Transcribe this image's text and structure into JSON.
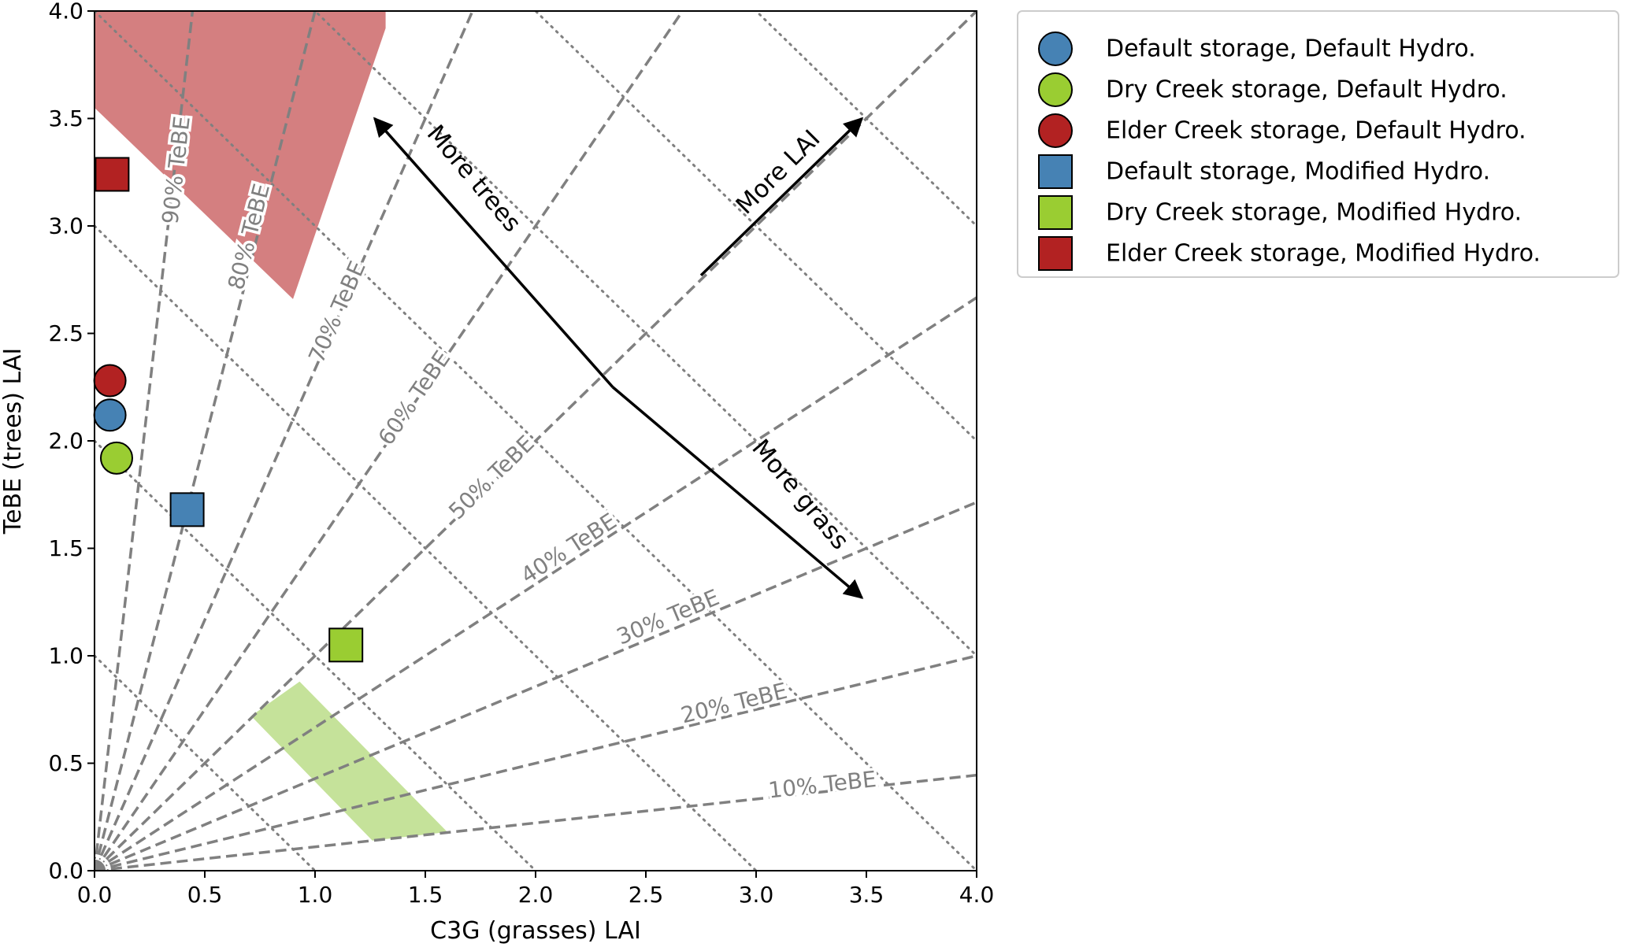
{
  "chart_data": {
    "type": "scatter",
    "xlabel": "C3G (grasses) LAI",
    "ylabel": "TeBE (trees) LAI",
    "xlim": [
      0,
      4
    ],
    "ylim": [
      0,
      4
    ],
    "x_ticks": [
      "0.0",
      "0.5",
      "1.0",
      "1.5",
      "2.0",
      "2.5",
      "3.0",
      "3.5",
      "4.0"
    ],
    "y_ticks": [
      "0.0",
      "0.5",
      "1.0",
      "1.5",
      "2.0",
      "2.5",
      "3.0",
      "3.5",
      "4.0"
    ],
    "grid": false,
    "legend_position": "outside-right",
    "series": [
      {
        "name": "Default storage, Default Hydro.",
        "marker": "circle",
        "color": "#4682b4",
        "x": 0.07,
        "y": 2.12
      },
      {
        "name": "Dry Creek storage, Default Hydro.",
        "marker": "circle",
        "color": "#9acd32",
        "x": 0.1,
        "y": 1.92
      },
      {
        "name": "Elder Creek storage, Default Hydro.",
        "marker": "circle",
        "color": "#b22222",
        "x": 0.07,
        "y": 2.28
      },
      {
        "name": "Default storage, Modified Hydro.",
        "marker": "square",
        "color": "#4682b4",
        "x": 0.42,
        "y": 1.68
      },
      {
        "name": "Dry Creek storage, Modified Hydro.",
        "marker": "square",
        "color": "#9acd32",
        "x": 1.14,
        "y": 1.05
      },
      {
        "name": "Elder Creek storage, Modified Hydro.",
        "marker": "square",
        "color": "#b22222",
        "x": 0.08,
        "y": 3.24
      }
    ],
    "tebe_fraction_lines": [
      {
        "fraction": 0.1,
        "label": "10% TeBE",
        "label_pos": [
          3.3,
          0.4
        ]
      },
      {
        "fraction": 0.2,
        "label": "20% TeBE",
        "label_pos": [
          2.9,
          0.78
        ]
      },
      {
        "fraction": 0.3,
        "label": "30% TeBE",
        "label_pos": [
          2.6,
          1.18
        ]
      },
      {
        "fraction": 0.4,
        "label": "40% TeBE",
        "label_pos": [
          2.15,
          1.5
        ]
      },
      {
        "fraction": 0.5,
        "label": "50% TeBE",
        "label_pos": [
          1.8,
          1.83
        ]
      },
      {
        "fraction": 0.6,
        "label": "60% TeBE",
        "label_pos": [
          1.45,
          2.2
        ]
      },
      {
        "fraction": 0.7,
        "label": "70% TeBE",
        "label_pos": [
          1.1,
          2.6
        ]
      },
      {
        "fraction": 0.8,
        "label": "80% TeBE",
        "label_pos": [
          0.7,
          2.95
        ]
      },
      {
        "fraction": 0.9,
        "label": "90% TeBE",
        "label_pos": [
          0.37,
          3.26
        ]
      }
    ],
    "total_lai_lines": [
      1,
      2,
      3,
      4,
      5,
      6,
      7,
      8
    ],
    "shaded_regions": [
      {
        "name": "elder-creek-range",
        "color": "#d47f80",
        "polygon": [
          [
            0,
            3.55
          ],
          [
            0,
            4.0
          ],
          [
            1.32,
            4.0
          ],
          [
            1.32,
            3.92
          ],
          [
            0.9,
            2.66
          ]
        ]
      },
      {
        "name": "dry-creek-range",
        "color": "#c5e29a",
        "polygon": [
          [
            0.71,
            0.72
          ],
          [
            0.93,
            0.88
          ],
          [
            1.6,
            0.18
          ],
          [
            1.26,
            0.14
          ]
        ]
      }
    ],
    "annotations": [
      {
        "text": "More trees",
        "from": [
          2.35,
          2.25
        ],
        "to": [
          1.27,
          3.5
        ],
        "label_pos": [
          1.72,
          3.22
        ],
        "angle": 50
      },
      {
        "text": "More grass",
        "from": [
          2.35,
          2.25
        ],
        "to": [
          3.48,
          1.27
        ],
        "label_pos": [
          3.2,
          1.75
        ],
        "angle": 50
      },
      {
        "text": "More LAI",
        "from": [
          2.75,
          2.77
        ],
        "to": [
          3.48,
          3.5
        ],
        "label_pos": [
          3.1,
          3.25
        ],
        "angle": -45
      }
    ]
  }
}
